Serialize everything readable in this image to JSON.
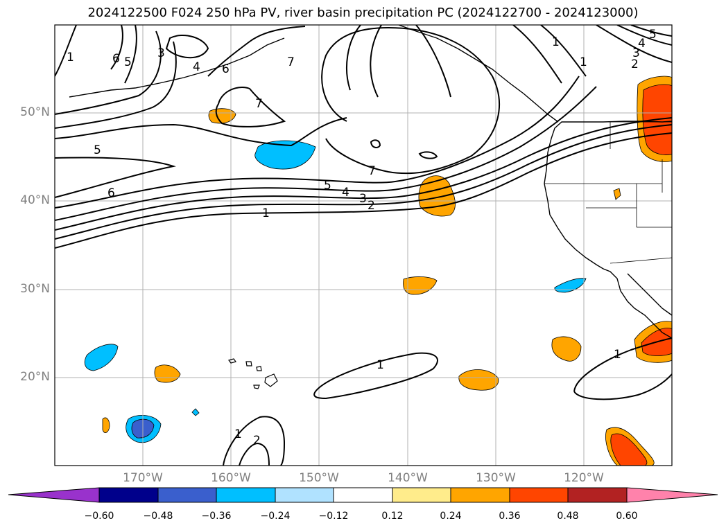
{
  "title": "2024122500 F024 250 hPa PV, river basin precipitation PC (2024122700 - 2024123000)",
  "lat_labels": [
    "50°N",
    "40°N",
    "30°N",
    "20°N"
  ],
  "lon_labels": [
    "170°W",
    "160°W",
    "150°W",
    "140°W",
    "130°W",
    "120°W"
  ],
  "colorbar": {
    "ticks": [
      "−0.60",
      "−0.48",
      "−0.36",
      "−0.24",
      "−0.12",
      "0.12",
      "0.24",
      "0.36",
      "0.48",
      "0.60"
    ],
    "colors": [
      "#9932cc",
      "#00008b",
      "#3a5fcd",
      "#00bfff",
      "#b0e2ff",
      "#ffffff",
      "#ffec8b",
      "#ffa500",
      "#ff4500",
      "#b22222",
      "#ff82ab"
    ]
  },
  "contour_labels": {
    "l1a": "1",
    "l2a": "2",
    "l3a": "3",
    "l4a": "4",
    "l5a": "5",
    "l7a": "7",
    "l1b": "1",
    "l1c": "1",
    "l1d": "1",
    "l2b": "2",
    "l5b": "5",
    "l6b": "6",
    "l3c": "3",
    "l4c": "4",
    "l5c": "5",
    "l6c": "6",
    "l6d": "6",
    "l1e": "1",
    "l7b": "7",
    "l7c": "7",
    "l1f": "1",
    "l1g": "1",
    "l2c": "2",
    "l3d": "3",
    "l4d": "4",
    "l5d": "5"
  },
  "colors": {
    "grid": "#b0b0b0",
    "axis_text": "#808080"
  }
}
